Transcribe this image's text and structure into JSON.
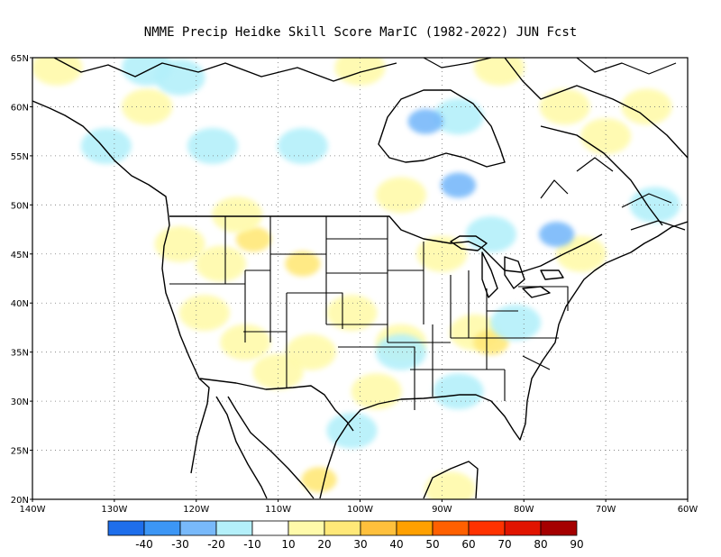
{
  "title": "NMME Precip Heidke Skill Score MarIC (1982-2022) JUN Fcst",
  "map": {
    "lat_range": [
      20,
      65
    ],
    "lon_range": [
      -140,
      -60
    ],
    "lat_ticks": [
      "20N",
      "25N",
      "30N",
      "35N",
      "40N",
      "45N",
      "50N",
      "55N",
      "60N",
      "65N"
    ],
    "lon_ticks": [
      "140W",
      "130W",
      "120W",
      "110W",
      "100W",
      "90W",
      "80W",
      "70W",
      "60W"
    ],
    "gridlines": "dotted",
    "blobs": [
      {
        "lon": -122,
        "lat": 46,
        "level": 20
      },
      {
        "lon": -117,
        "lat": 44,
        "level": 20
      },
      {
        "lon": -113,
        "lat": 46.5,
        "level": 30
      },
      {
        "lon": -107,
        "lat": 44,
        "level": 30
      },
      {
        "lon": -119,
        "lat": 39,
        "level": 20
      },
      {
        "lon": -114,
        "lat": 36,
        "level": 20
      },
      {
        "lon": -110,
        "lat": 33,
        "level": 20
      },
      {
        "lon": -106,
        "lat": 35,
        "level": 20
      },
      {
        "lon": -101,
        "lat": 39,
        "level": 20
      },
      {
        "lon": -98,
        "lat": 31,
        "level": 20
      },
      {
        "lon": -95,
        "lat": 36,
        "level": 20
      },
      {
        "lon": -86,
        "lat": 37,
        "level": 20
      },
      {
        "lon": -84,
        "lat": 36,
        "level": 30
      },
      {
        "lon": -105,
        "lat": 22,
        "level": 30
      },
      {
        "lon": -137,
        "lat": 64,
        "level": 20
      },
      {
        "lon": -126,
        "lat": 60,
        "level": 20
      },
      {
        "lon": -75,
        "lat": 60,
        "level": 20
      },
      {
        "lon": -70,
        "lat": 57,
        "level": 20
      },
      {
        "lon": -65,
        "lat": 60,
        "level": 20
      },
      {
        "lon": -95,
        "lat": 51,
        "level": 20
      },
      {
        "lon": -100,
        "lat": 64,
        "level": 20
      },
      {
        "lon": -83,
        "lat": 64,
        "level": 20
      },
      {
        "lon": -90,
        "lat": 45,
        "level": 20
      },
      {
        "lon": -115,
        "lat": 49,
        "level": 20
      },
      {
        "lon": -89,
        "lat": 21,
        "level": 20
      },
      {
        "lon": -73,
        "lat": 45,
        "level": 20
      },
      {
        "lon": -88,
        "lat": 59,
        "level": -10
      },
      {
        "lon": -92,
        "lat": 58.5,
        "level": -20
      },
      {
        "lon": -122,
        "lat": 63,
        "level": -10
      },
      {
        "lon": -118,
        "lat": 56,
        "level": -10
      },
      {
        "lon": -107,
        "lat": 56,
        "level": -10
      },
      {
        "lon": -76,
        "lat": 47,
        "level": -20
      },
      {
        "lon": -84,
        "lat": 47,
        "level": -10
      },
      {
        "lon": -81,
        "lat": 38,
        "level": -10
      },
      {
        "lon": -95,
        "lat": 35,
        "level": -10
      },
      {
        "lon": -88,
        "lat": 31,
        "level": -10
      },
      {
        "lon": -101,
        "lat": 27,
        "level": -10
      },
      {
        "lon": -131,
        "lat": 56,
        "level": -10
      },
      {
        "lon": -126,
        "lat": 64,
        "level": -10
      },
      {
        "lon": -88,
        "lat": 52,
        "level": -20
      },
      {
        "lon": -64,
        "lat": 50,
        "level": -10
      }
    ]
  },
  "colorbar": {
    "labels": [
      "-40",
      "-30",
      "-20",
      "-10",
      "10",
      "20",
      "30",
      "40",
      "50",
      "60",
      "70",
      "80",
      "90"
    ],
    "colors": [
      "#1e6eeb",
      "#3c96f5",
      "#78b9fa",
      "#b4f0fa",
      "#ffffff",
      "#fffaaa",
      "#ffe878",
      "#ffc03c",
      "#ffa000",
      "#ff6000",
      "#ff3200",
      "#e11400",
      "#a50000"
    ]
  },
  "level_colors": {
    "-40": "#1e6eeb",
    "-30": "#3c96f5",
    "-20": "#78b9fa",
    "-10": "#b4f0fa",
    "20": "#fffaaa",
    "30": "#ffe878",
    "40": "#ffc03c"
  }
}
